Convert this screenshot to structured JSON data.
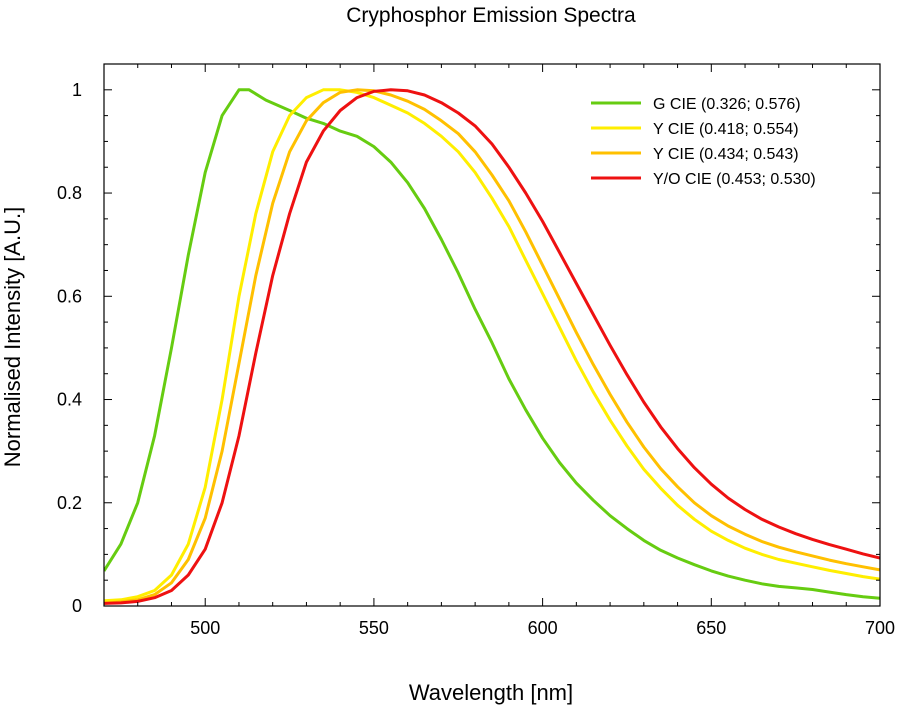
{
  "chart_data": {
    "type": "line",
    "title": "Cryphosphor Emission Spectra",
    "xlabel": "Wavelength [nm]",
    "ylabel": "Normalised Intensity [A.U.]",
    "xlim": [
      470,
      700
    ],
    "ylim": [
      0,
      1.05
    ],
    "xticks": [
      500,
      550,
      600,
      650,
      700
    ],
    "xtick_labels": [
      "500",
      "550",
      "600",
      "650",
      "700"
    ],
    "yticks": [
      0,
      0.2,
      0.4,
      0.6,
      0.8,
      1
    ],
    "ytick_labels": [
      "0",
      "0.2",
      "0.4",
      "0.6",
      "0.8",
      "1"
    ],
    "grid": false,
    "legend_position": "top-right",
    "series": [
      {
        "name": "G CIE (0.326; 0.576)",
        "color": "#66cc11",
        "points": [
          [
            470,
            0.068
          ],
          [
            475,
            0.12
          ],
          [
            480,
            0.2
          ],
          [
            485,
            0.33
          ],
          [
            490,
            0.5
          ],
          [
            495,
            0.68
          ],
          [
            500,
            0.84
          ],
          [
            505,
            0.95
          ],
          [
            510,
            1.0
          ],
          [
            513,
            1.0
          ],
          [
            518,
            0.98
          ],
          [
            525,
            0.96
          ],
          [
            530,
            0.945
          ],
          [
            535,
            0.935
          ],
          [
            540,
            0.92
          ],
          [
            545,
            0.91
          ],
          [
            550,
            0.89
          ],
          [
            555,
            0.86
          ],
          [
            560,
            0.82
          ],
          [
            565,
            0.77
          ],
          [
            570,
            0.71
          ],
          [
            575,
            0.645
          ],
          [
            580,
            0.575
          ],
          [
            585,
            0.51
          ],
          [
            590,
            0.44
          ],
          [
            595,
            0.38
          ],
          [
            600,
            0.325
          ],
          [
            605,
            0.278
          ],
          [
            610,
            0.238
          ],
          [
            615,
            0.205
          ],
          [
            620,
            0.175
          ],
          [
            625,
            0.15
          ],
          [
            630,
            0.127
          ],
          [
            635,
            0.108
          ],
          [
            640,
            0.093
          ],
          [
            645,
            0.08
          ],
          [
            650,
            0.068
          ],
          [
            655,
            0.058
          ],
          [
            660,
            0.05
          ],
          [
            665,
            0.043
          ],
          [
            670,
            0.038
          ],
          [
            675,
            0.035
          ],
          [
            680,
            0.032
          ],
          [
            685,
            0.027
          ],
          [
            690,
            0.022
          ],
          [
            695,
            0.018
          ],
          [
            700,
            0.015
          ]
        ]
      },
      {
        "name": "Y CIE (0.418; 0.554)",
        "color": "#ffee00",
        "points": [
          [
            470,
            0.01
          ],
          [
            475,
            0.012
          ],
          [
            480,
            0.018
          ],
          [
            485,
            0.03
          ],
          [
            490,
            0.06
          ],
          [
            495,
            0.12
          ],
          [
            500,
            0.23
          ],
          [
            505,
            0.4
          ],
          [
            510,
            0.6
          ],
          [
            515,
            0.76
          ],
          [
            520,
            0.88
          ],
          [
            525,
            0.95
          ],
          [
            530,
            0.985
          ],
          [
            535,
            1.0
          ],
          [
            540,
            1.0
          ],
          [
            545,
            0.995
          ],
          [
            550,
            0.985
          ],
          [
            555,
            0.97
          ],
          [
            560,
            0.955
          ],
          [
            565,
            0.935
          ],
          [
            570,
            0.91
          ],
          [
            575,
            0.88
          ],
          [
            580,
            0.84
          ],
          [
            585,
            0.79
          ],
          [
            590,
            0.735
          ],
          [
            595,
            0.67
          ],
          [
            600,
            0.605
          ],
          [
            605,
            0.54
          ],
          [
            610,
            0.475
          ],
          [
            615,
            0.415
          ],
          [
            620,
            0.36
          ],
          [
            625,
            0.31
          ],
          [
            630,
            0.265
          ],
          [
            635,
            0.228
          ],
          [
            640,
            0.195
          ],
          [
            645,
            0.168
          ],
          [
            650,
            0.145
          ],
          [
            655,
            0.127
          ],
          [
            660,
            0.112
          ],
          [
            665,
            0.1
          ],
          [
            670,
            0.09
          ],
          [
            675,
            0.083
          ],
          [
            680,
            0.076
          ],
          [
            685,
            0.069
          ],
          [
            690,
            0.063
          ],
          [
            695,
            0.057
          ],
          [
            700,
            0.052
          ]
        ]
      },
      {
        "name": "Y CIE (0.434; 0.543)",
        "color": "#ffc000",
        "points": [
          [
            470,
            0.005
          ],
          [
            475,
            0.008
          ],
          [
            480,
            0.012
          ],
          [
            485,
            0.022
          ],
          [
            490,
            0.045
          ],
          [
            495,
            0.09
          ],
          [
            500,
            0.17
          ],
          [
            505,
            0.3
          ],
          [
            510,
            0.47
          ],
          [
            515,
            0.64
          ],
          [
            520,
            0.78
          ],
          [
            525,
            0.88
          ],
          [
            530,
            0.94
          ],
          [
            535,
            0.975
          ],
          [
            540,
            0.995
          ],
          [
            545,
            1.0
          ],
          [
            550,
            0.998
          ],
          [
            555,
            0.99
          ],
          [
            560,
            0.978
          ],
          [
            565,
            0.962
          ],
          [
            570,
            0.94
          ],
          [
            575,
            0.915
          ],
          [
            580,
            0.88
          ],
          [
            585,
            0.835
          ],
          [
            590,
            0.785
          ],
          [
            595,
            0.725
          ],
          [
            600,
            0.66
          ],
          [
            605,
            0.595
          ],
          [
            610,
            0.53
          ],
          [
            615,
            0.468
          ],
          [
            620,
            0.41
          ],
          [
            625,
            0.356
          ],
          [
            630,
            0.308
          ],
          [
            635,
            0.266
          ],
          [
            640,
            0.231
          ],
          [
            645,
            0.2
          ],
          [
            650,
            0.175
          ],
          [
            655,
            0.155
          ],
          [
            660,
            0.139
          ],
          [
            665,
            0.125
          ],
          [
            670,
            0.114
          ],
          [
            675,
            0.105
          ],
          [
            680,
            0.097
          ],
          [
            685,
            0.089
          ],
          [
            690,
            0.082
          ],
          [
            695,
            0.076
          ],
          [
            700,
            0.07
          ]
        ]
      },
      {
        "name": "Y/O CIE (0.453; 0.530)",
        "color": "#ee1111",
        "points": [
          [
            470,
            0.005
          ],
          [
            475,
            0.006
          ],
          [
            480,
            0.009
          ],
          [
            485,
            0.016
          ],
          [
            490,
            0.03
          ],
          [
            495,
            0.06
          ],
          [
            500,
            0.11
          ],
          [
            505,
            0.2
          ],
          [
            510,
            0.33
          ],
          [
            515,
            0.49
          ],
          [
            520,
            0.64
          ],
          [
            525,
            0.76
          ],
          [
            530,
            0.86
          ],
          [
            535,
            0.92
          ],
          [
            540,
            0.96
          ],
          [
            545,
            0.985
          ],
          [
            550,
            0.997
          ],
          [
            555,
            1.0
          ],
          [
            560,
            0.998
          ],
          [
            565,
            0.99
          ],
          [
            570,
            0.975
          ],
          [
            575,
            0.955
          ],
          [
            580,
            0.93
          ],
          [
            585,
            0.895
          ],
          [
            590,
            0.85
          ],
          [
            595,
            0.8
          ],
          [
            600,
            0.745
          ],
          [
            605,
            0.685
          ],
          [
            610,
            0.625
          ],
          [
            615,
            0.565
          ],
          [
            620,
            0.505
          ],
          [
            625,
            0.448
          ],
          [
            630,
            0.395
          ],
          [
            635,
            0.347
          ],
          [
            640,
            0.305
          ],
          [
            645,
            0.268
          ],
          [
            650,
            0.236
          ],
          [
            655,
            0.209
          ],
          [
            660,
            0.187
          ],
          [
            665,
            0.168
          ],
          [
            670,
            0.153
          ],
          [
            675,
            0.14
          ],
          [
            680,
            0.129
          ],
          [
            685,
            0.119
          ],
          [
            690,
            0.11
          ],
          [
            695,
            0.101
          ],
          [
            700,
            0.093
          ]
        ]
      }
    ]
  }
}
